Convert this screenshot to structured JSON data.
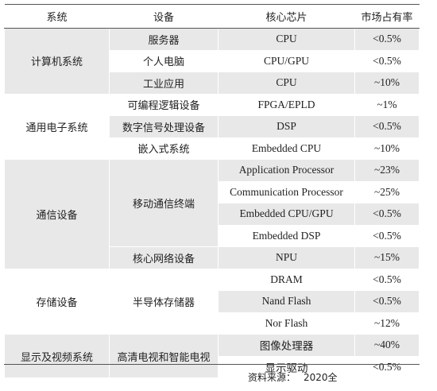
{
  "table": {
    "header": [
      "系统",
      "设备",
      "核心芯片",
      "市场占有率"
    ],
    "groups": [
      {
        "system": "计算机系统",
        "devices": [
          {
            "name": "服务器",
            "chips": [
              {
                "chip": "CPU",
                "share": "<0.5%"
              }
            ]
          },
          {
            "name": "个人电脑",
            "chips": [
              {
                "chip": "CPU/GPU",
                "share": "<0.5%"
              }
            ]
          },
          {
            "name": "工业应用",
            "chips": [
              {
                "chip": "CPU",
                "share": "~10%"
              }
            ]
          }
        ]
      },
      {
        "system": "通用电子系统",
        "devices": [
          {
            "name": "可编程逻辑设备",
            "chips": [
              {
                "chip": "FPGA/EPLD",
                "share": "~1%"
              }
            ]
          },
          {
            "name": "数字信号处理设备",
            "chips": [
              {
                "chip": "DSP",
                "share": "<0.5%"
              }
            ]
          },
          {
            "name": "嵌入式系统",
            "chips": [
              {
                "chip": "Embedded CPU",
                "share": "~10%"
              }
            ]
          }
        ]
      },
      {
        "system": "通信设备",
        "devices": [
          {
            "name": "移动通信终端",
            "chips": [
              {
                "chip": "Application Processor",
                "share": "~23%"
              },
              {
                "chip": "Communication Processor",
                "share": "~25%"
              },
              {
                "chip": "Embedded CPU/GPU",
                "share": "<0.5%"
              },
              {
                "chip": "Embedded DSP",
                "share": "<0.5%"
              }
            ]
          },
          {
            "name": "核心网络设备",
            "chips": [
              {
                "chip": "NPU",
                "share": "~15%"
              }
            ]
          }
        ]
      },
      {
        "system": "存储设备",
        "devices": [
          {
            "name": "半导体存储器",
            "chips": [
              {
                "chip": "DRAM",
                "share": "<0.5%"
              },
              {
                "chip": "Nand Flash",
                "share": "<0.5%"
              },
              {
                "chip": "Nor Flash",
                "share": "~12%"
              }
            ]
          }
        ]
      },
      {
        "system": "显示及视频系统",
        "devices": [
          {
            "name": "高清电视和智能电视",
            "chips": [
              {
                "chip": "图像处理器",
                "share": "~40%"
              },
              {
                "chip": "显示驱动",
                "share": "<0.5%"
              }
            ]
          }
        ]
      }
    ]
  },
  "footer": {
    "label": "资料来源：",
    "text": "2020全"
  }
}
